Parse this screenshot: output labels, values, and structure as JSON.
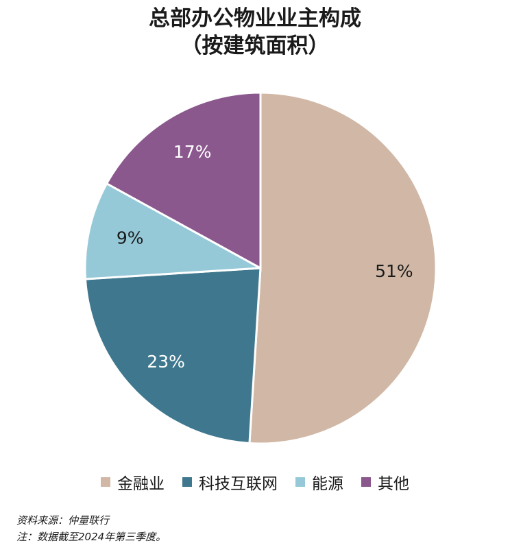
{
  "title_line_1": "总部办公物业业主构成",
  "title_line_2": "（按建筑面积）",
  "chart_data": {
    "type": "pie",
    "title": "总部办公物业业主构成（按建筑面积）",
    "slices": [
      {
        "name": "金融业",
        "value": 51,
        "label": "51%",
        "color": "#d1b8a6",
        "label_color": "#1a1a1a"
      },
      {
        "name": "科技互联网",
        "value": 23,
        "label": "23%",
        "color": "#3f788e",
        "label_color": "#ffffff"
      },
      {
        "name": "能源",
        "value": 9,
        "label": "9%",
        "color": "#96c9d8",
        "label_color": "#1a1a1a"
      },
      {
        "name": "其他",
        "value": 17,
        "label": "17%",
        "color": "#8b588e",
        "label_color": "#ffffff"
      }
    ],
    "legend_position": "bottom"
  },
  "footnotes": {
    "source": "资料来源：仲量联行",
    "note": "注：数据截至2024年第三季度。"
  }
}
